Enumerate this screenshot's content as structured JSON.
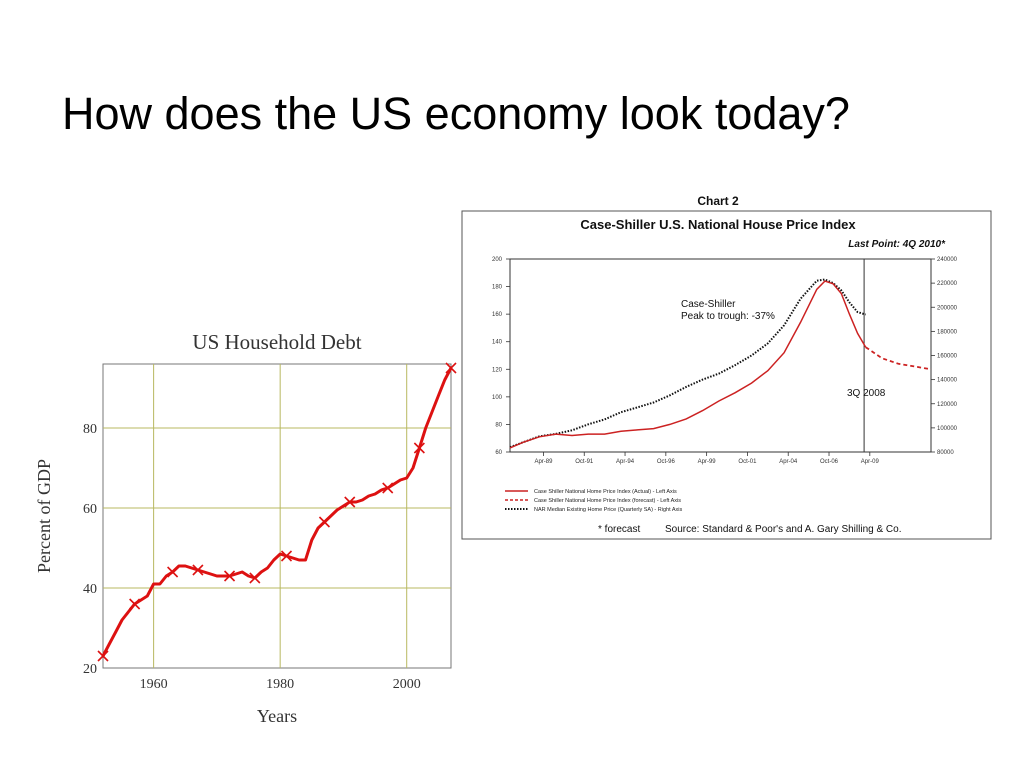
{
  "slide": {
    "title": "How does the US economy look today?"
  },
  "chart_data": [
    {
      "type": "line",
      "title": "US Household Debt",
      "xlabel": "Years",
      "ylabel": "Percent of GDP",
      "xlim": [
        1952,
        2007
      ],
      "ylim": [
        20,
        96
      ],
      "x_ticks": [
        "1960",
        "1980",
        "2000"
      ],
      "y_ticks": [
        "20",
        "40",
        "60",
        "80"
      ],
      "grid": true,
      "line_color": "#dd1111",
      "series": [
        {
          "x": [
            1952,
            1953,
            1954,
            1955,
            1956,
            1957,
            1958,
            1959,
            1960,
            1961,
            1962,
            1963,
            1964,
            1965,
            1966,
            1967,
            1968,
            1969,
            1970,
            1971,
            1972,
            1973,
            1974,
            1975,
            1976,
            1977,
            1978,
            1979,
            1980,
            1981,
            1982,
            1983,
            1984,
            1985,
            1986,
            1987,
            1988,
            1989,
            1990,
            1991,
            1992,
            1993,
            1994,
            1995,
            1996,
            1997,
            1998,
            1999,
            2000,
            2001,
            2002,
            2003,
            2004,
            2005,
            2006,
            2007
          ],
          "y": [
            23,
            26,
            29,
            32,
            34,
            36,
            37,
            38,
            41,
            41,
            43,
            44,
            45.5,
            45.5,
            45,
            44.5,
            44,
            43.5,
            43,
            43,
            43,
            43.5,
            44,
            43,
            42.5,
            44,
            45,
            47,
            48.5,
            48,
            47.5,
            47,
            47,
            52,
            55,
            56.5,
            58,
            59.5,
            60.5,
            61.5,
            61.5,
            62,
            63,
            63.5,
            64.5,
            65,
            66,
            67,
            67.5,
            70,
            75,
            80,
            84,
            88,
            92,
            95
          ]
        }
      ],
      "markers_x": [
        1952,
        1957,
        1963,
        1967,
        1972,
        1976,
        1981,
        1987,
        1991,
        1997,
        2002,
        2007
      ]
    },
    {
      "type": "line",
      "header": "Chart 2",
      "title": "Case-Shiller U.S. National House Price Index",
      "subtitle": "Last Point: 4Q 2010*",
      "y_left_ticks": [
        "200",
        "180",
        "160",
        "140",
        "120",
        "100",
        "80",
        "60"
      ],
      "y_right_ticks": [
        "240000",
        "220000",
        "200000",
        "180000",
        "160000",
        "140000",
        "120000",
        "100000",
        "80000"
      ],
      "x_ticks": [
        "Apr-89",
        "Oct-91",
        "Apr-94",
        "Oct-96",
        "Apr-99",
        "Oct-01",
        "Apr-04",
        "Oct-06",
        "Apr-09"
      ],
      "ylim_left": [
        60,
        200
      ],
      "ylim_right": [
        80000,
        240000
      ],
      "annotations": [
        "Case-Shiller",
        "Peak to trough: -37%",
        "3Q 2008"
      ],
      "vline_x": 2008.9,
      "legend": [
        {
          "label": "Case Shiller National Home Price Index (Actual) - Left Axis",
          "style": "solid",
          "color": "#cc2222"
        },
        {
          "label": "Case Shiller National Home Price Index (forecast) - Left Axis",
          "style": "dashed",
          "color": "#cc2222"
        },
        {
          "label": "NAR Median Existing Home Price (Quarterly SA) - Right Axis",
          "style": "dotted",
          "color": "#111111"
        }
      ],
      "footnote": "* forecast",
      "source": "Source: Standard & Poor's and A. Gary Shilling & Co.",
      "series": [
        {
          "x": [
            1987.2,
            1988,
            1989,
            1990,
            1991,
            1992,
            1993,
            1994,
            1995,
            1996,
            1997,
            1998,
            1999,
            2000,
            2001,
            2002,
            2003,
            2004,
            2005,
            2006,
            2006.5,
            2007,
            2007.5,
            2008,
            2008.5,
            2009
          ],
          "y": [
            63,
            67,
            71,
            73,
            72,
            73,
            73,
            75,
            76,
            77,
            80,
            84,
            90,
            97,
            103,
            110,
            119,
            132,
            154,
            178,
            184,
            182,
            175,
            160,
            146,
            136
          ]
        },
        {
          "x": [
            2009,
            2009.5,
            2010,
            2010.5,
            2011,
            2011.5,
            2012,
            2012.5,
            2013
          ],
          "y": [
            136,
            132,
            128,
            126,
            124,
            123,
            122,
            121,
            120
          ]
        },
        {
          "x": [
            1987.2,
            1988,
            1989,
            1990,
            1991,
            1992,
            1993,
            1994,
            1995,
            1996,
            1997,
            1998,
            1999,
            2000,
            2001,
            2002,
            2003,
            2004,
            2005,
            2006,
            2006.5,
            2007,
            2007.5,
            2008,
            2008.5,
            2009
          ],
          "y": [
            84000,
            88000,
            93000,
            95000,
            98000,
            103000,
            107000,
            113000,
            117000,
            121000,
            127000,
            134000,
            140000,
            145000,
            152000,
            160000,
            170000,
            185000,
            207000,
            222000,
            223000,
            220000,
            214000,
            204000,
            196000,
            194000
          ]
        }
      ]
    }
  ]
}
